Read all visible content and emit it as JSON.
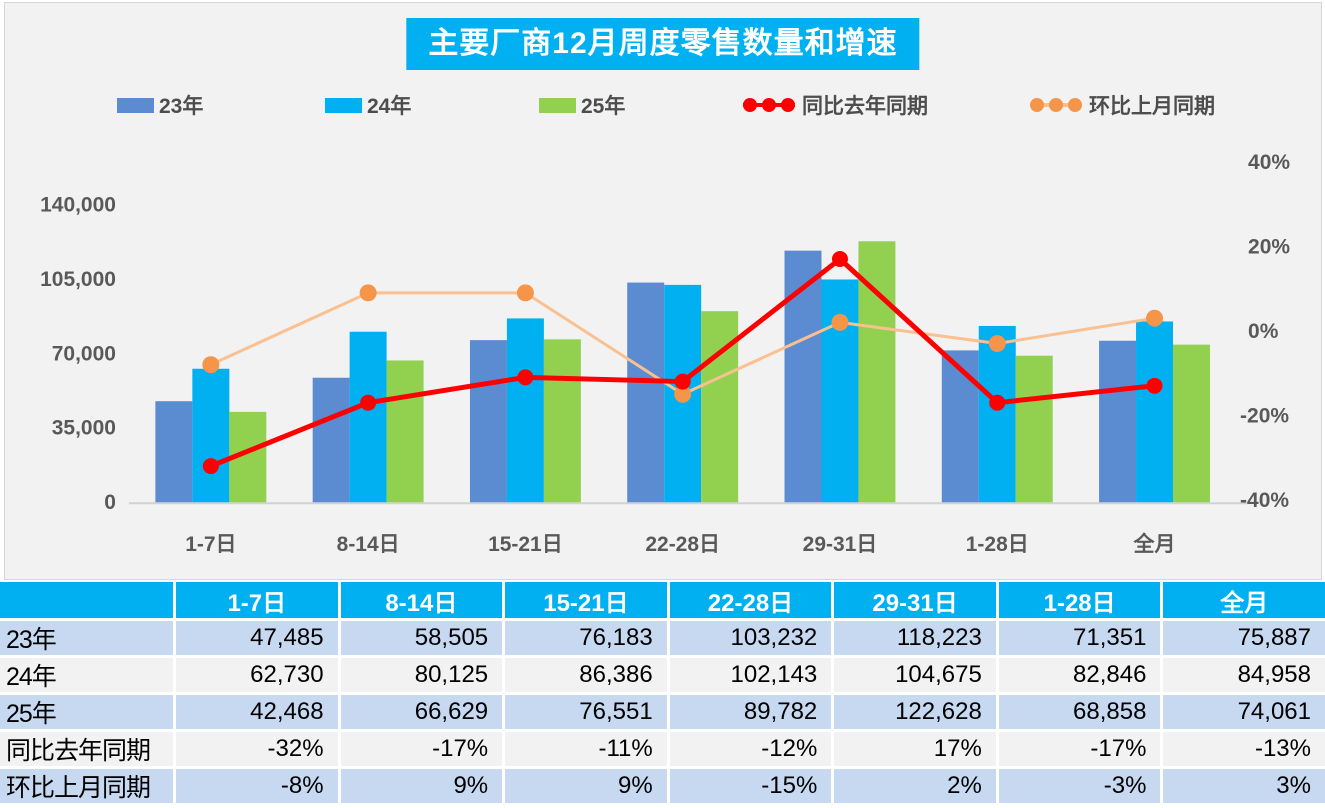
{
  "title": {
    "text": "主要厂商12月周度零售数量和增速"
  },
  "colors": {
    "accent": "#00B0F0",
    "chart_bg": "#F2F2F3",
    "axis_text": "#595959",
    "axis_line": "#D2D2D2",
    "bar_23": "#5B8BD0",
    "bar_24": "#00B0F0",
    "bar_25": "#92D050",
    "line_yoy": "#FF0000",
    "line_mom": "#FAC090",
    "line_mom_marker": "#F5954A"
  },
  "legend": [
    {
      "label": "23年",
      "type": "bar",
      "color": "#5B8BD0"
    },
    {
      "label": "24年",
      "type": "bar",
      "color": "#00B0F0"
    },
    {
      "label": "25年",
      "type": "bar",
      "color": "#92D050"
    },
    {
      "label": "同比去年同期",
      "type": "line",
      "color": "#FF0000",
      "marker": "#FF0000"
    },
    {
      "label": "环比上月同期",
      "type": "line",
      "color": "#FAC090",
      "marker": "#F5954A"
    }
  ],
  "chart_data": {
    "type": "bar",
    "subtype": "combo-bar-line-dual-axis",
    "title": "主要厂商12月周度零售数量和增速",
    "categories": [
      "1-7日",
      "8-14日",
      "15-21日",
      "22-28日",
      "29-31日",
      "1-28日",
      "全月"
    ],
    "series": [
      {
        "name": "23年",
        "type": "bar",
        "axis": "left",
        "color": "#5B8BD0",
        "values": [
          47485,
          58505,
          76183,
          103232,
          118223,
          71351,
          75887
        ]
      },
      {
        "name": "24年",
        "type": "bar",
        "axis": "left",
        "color": "#00B0F0",
        "values": [
          62730,
          80125,
          86386,
          102143,
          104675,
          82846,
          84958
        ]
      },
      {
        "name": "25年",
        "type": "bar",
        "axis": "left",
        "color": "#92D050",
        "values": [
          42468,
          66629,
          76551,
          89782,
          122628,
          68858,
          74061
        ]
      },
      {
        "name": "同比去年同期",
        "type": "line",
        "axis": "right",
        "color": "#FF0000",
        "marker": "#FF0000",
        "width": 5,
        "marker_r": 8,
        "values": [
          -32,
          -17,
          -11,
          -12,
          17,
          -17,
          -13
        ]
      },
      {
        "name": "环比上月同期",
        "type": "line",
        "axis": "right",
        "color": "#FAC090",
        "marker": "#F5954A",
        "width": 3,
        "marker_r": 8.5,
        "values": [
          -8,
          9,
          9,
          -15,
          2,
          -3,
          3
        ]
      }
    ],
    "left_axis": {
      "labels": [
        "140,000",
        "105,000",
        "70,000",
        "35,000",
        "0"
      ],
      "values": [
        140000,
        105000,
        70000,
        35000,
        0
      ],
      "min": 0,
      "max": 140000
    },
    "right_axis": {
      "labels": [
        "40%",
        "20%",
        "0%",
        "-20%",
        "-40%"
      ],
      "values": [
        40,
        20,
        0,
        -20,
        -40
      ],
      "min": -40,
      "max": 40,
      "unit": "%"
    },
    "grid": false,
    "legend_position": "top"
  },
  "table": {
    "corner": "",
    "col_headers": [
      "1-7日",
      "8-14日",
      "15-21日",
      "22-28日",
      "29-31日",
      "1-28日",
      "全月"
    ],
    "rows": [
      {
        "label": "23年",
        "values": [
          "47,485",
          "58,505",
          "76,183",
          "103,232",
          "118,223",
          "71,351",
          "75,887"
        ]
      },
      {
        "label": "24年",
        "values": [
          "62,730",
          "80,125",
          "86,386",
          "102,143",
          "104,675",
          "82,846",
          "84,958"
        ]
      },
      {
        "label": "25年",
        "values": [
          "42,468",
          "66,629",
          "76,551",
          "89,782",
          "122,628",
          "68,858",
          "74,061"
        ]
      },
      {
        "label": "同比去年同期",
        "values": [
          "-32%",
          "-17%",
          "-11%",
          "-12%",
          "17%",
          "-17%",
          "-13%"
        ]
      },
      {
        "label": "环比上月同期",
        "values": [
          "-8%",
          "9%",
          "9%",
          "-15%",
          "2%",
          "-3%",
          "3%"
        ]
      }
    ],
    "header_fill": "#00B0F0",
    "header_text": "#FFFFFF",
    "row_fill_a": "#C6D9F1",
    "row_fill_b": "#F2F2F2",
    "text_color": "#000000"
  }
}
